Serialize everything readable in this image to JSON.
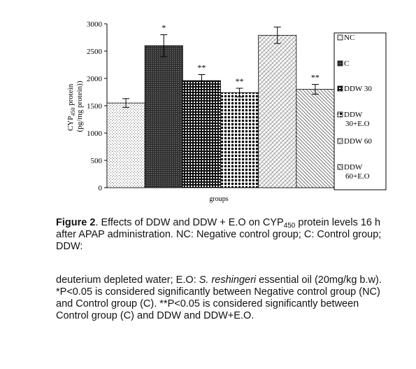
{
  "chart_data": {
    "type": "bar",
    "categories": [
      "NC",
      "C",
      "DDW 30",
      "DDW 30+E.O",
      "DDW 60",
      "DDW 60+E.O"
    ],
    "values": [
      1550,
      2600,
      1960,
      1740,
      2790,
      1800
    ],
    "errors": [
      80,
      200,
      110,
      80,
      150,
      90
    ],
    "annotations": [
      "",
      "*",
      "**",
      "**",
      "",
      "**"
    ],
    "legend": [
      {
        "line1": "NC",
        "line2": ""
      },
      {
        "line1": "C",
        "line2": ""
      },
      {
        "line1": "DDW 30",
        "line2": ""
      },
      {
        "line1": "DDW",
        "line2": "30+E.O"
      },
      {
        "line1": "DDW 60",
        "line2": ""
      },
      {
        "line1": "DDW",
        "line2": "60+E.O"
      }
    ],
    "xlabel": "groups",
    "ylabel_line1": "CYP",
    "ylabel_sub": "450",
    "ylabel_rest": " protein",
    "ylabel_line2": "(pg/mg protein))",
    "ylim": [
      0,
      3000
    ],
    "yticks": [
      0,
      500,
      1000,
      1500,
      2000,
      2500,
      3000
    ],
    "legend_position": "right",
    "grid": false
  },
  "caption": {
    "figure_label": "Figure 2",
    "part1_a": ". Effects of DDW and DDW + E.O on CYP",
    "part1_sub": "450",
    "part1_b": " protein levels 16 h after APAP administration. NC: Negative control group; C: Control group; DDW:",
    "part2_a": "deuterium depleted water; E.O: ",
    "part2_species": "S. reshingeri",
    "part2_b": " essential oil (20mg/kg b.w). *P<0.05 is considered significantly between Negative control group (NC) and Control group (C). **P<0.05 is considered significantly between Control group (C) and DDW and DDW+E.O."
  }
}
